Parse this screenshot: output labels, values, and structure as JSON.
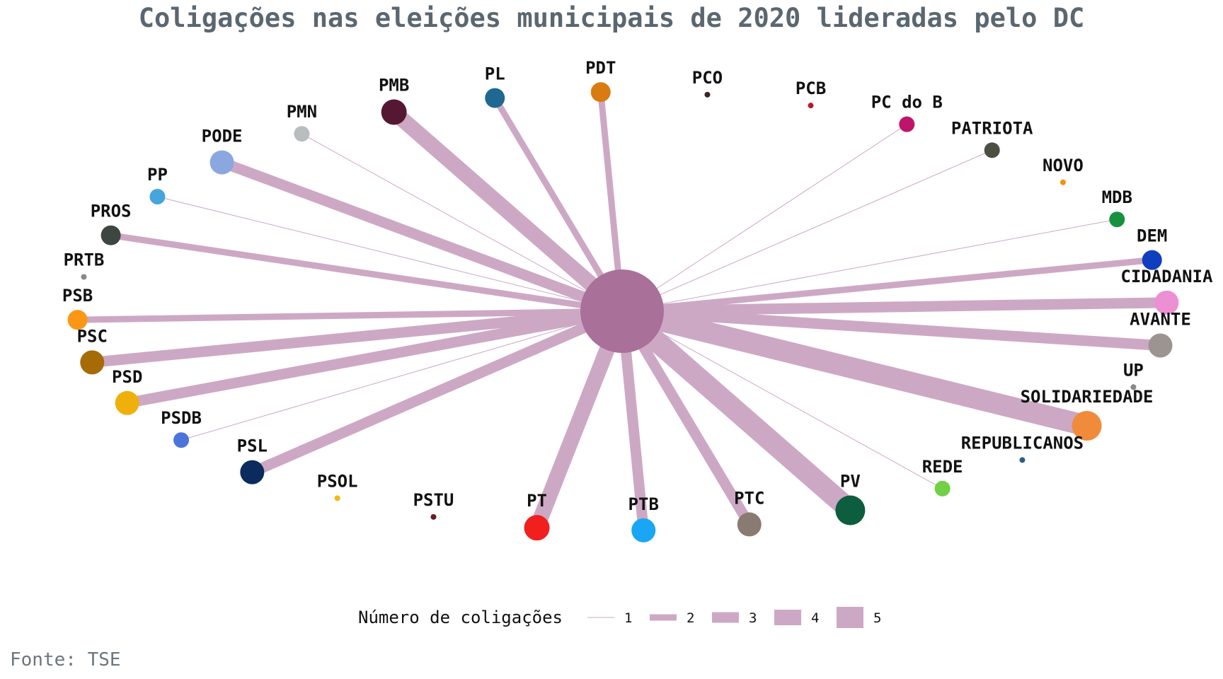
{
  "title": "Coligações nas eleições municipais de 2020 lideradas pelo DC",
  "source": "Fonte: TSE",
  "edge_color": "#cda8c4",
  "center_color": "#a97099",
  "chart_data": {
    "type": "network",
    "center": "DC",
    "nodes": [
      {
        "name": "PMN",
        "coalitions": 1,
        "color": "#b8bdbe"
      },
      {
        "name": "PMB",
        "coalitions": 4,
        "color": "#541833"
      },
      {
        "name": "PL",
        "coalitions": 2,
        "color": "#1f6892"
      },
      {
        "name": "PDT",
        "coalitions": 2,
        "color": "#d97b10"
      },
      {
        "name": "PCO",
        "coalitions": 0,
        "color": "#3d2323"
      },
      {
        "name": "PCB",
        "coalitions": 0,
        "color": "#b71c2c"
      },
      {
        "name": "PC do B",
        "coalitions": 1,
        "color": "#c0146b"
      },
      {
        "name": "PATRIOTA",
        "coalitions": 1,
        "color": "#4c5041"
      },
      {
        "name": "NOVO",
        "coalitions": 0,
        "color": "#f2900f"
      },
      {
        "name": "MDB",
        "coalitions": 1,
        "color": "#17913f"
      },
      {
        "name": "DEM",
        "coalitions": 2,
        "color": "#0f3fbf"
      },
      {
        "name": "CIDADANIA",
        "coalitions": 3,
        "color": "#ec8fd3"
      },
      {
        "name": "AVANTE",
        "coalitions": 3,
        "color": "#9c9490"
      },
      {
        "name": "UP",
        "coalitions": 0,
        "color": "#888888"
      },
      {
        "name": "SOLIDARIEDADE",
        "coalitions": 5,
        "color": "#ef8b3b"
      },
      {
        "name": "REPUBLICANOS",
        "coalitions": 0,
        "color": "#2f5d86"
      },
      {
        "name": "REDE",
        "coalitions": 1,
        "color": "#6fd143"
      },
      {
        "name": "PV",
        "coalitions": 5,
        "color": "#0c5e3f"
      },
      {
        "name": "PTC",
        "coalitions": 3,
        "color": "#8a7b72"
      },
      {
        "name": "PTB",
        "coalitions": 3,
        "color": "#1aa6f4"
      },
      {
        "name": "PT",
        "coalitions": 4,
        "color": "#f21f1f"
      },
      {
        "name": "PSTU",
        "coalitions": 0,
        "color": "#6a1a27"
      },
      {
        "name": "PSOL",
        "coalitions": 0,
        "color": "#f5b80f"
      },
      {
        "name": "PSL",
        "coalitions": 3,
        "color": "#0b2a5e"
      },
      {
        "name": "PSDB",
        "coalitions": 1,
        "color": "#4b75d9"
      },
      {
        "name": "PSD",
        "coalitions": 3,
        "color": "#f0b00c"
      },
      {
        "name": "PSC",
        "coalitions": 3,
        "color": "#a66b06"
      },
      {
        "name": "PSB",
        "coalitions": 2,
        "color": "#fb9715"
      },
      {
        "name": "PRTB",
        "coalitions": 0,
        "color": "#888888"
      },
      {
        "name": "PROS",
        "coalitions": 2,
        "color": "#3d4641"
      },
      {
        "name": "PP",
        "coalitions": 1,
        "color": "#45a5dd"
      },
      {
        "name": "PODE",
        "coalitions": 3,
        "color": "#8aa7df"
      }
    ],
    "legend": {
      "title": "Número de coligações",
      "values": [
        "1",
        "2",
        "3",
        "4",
        "5"
      ]
    }
  }
}
